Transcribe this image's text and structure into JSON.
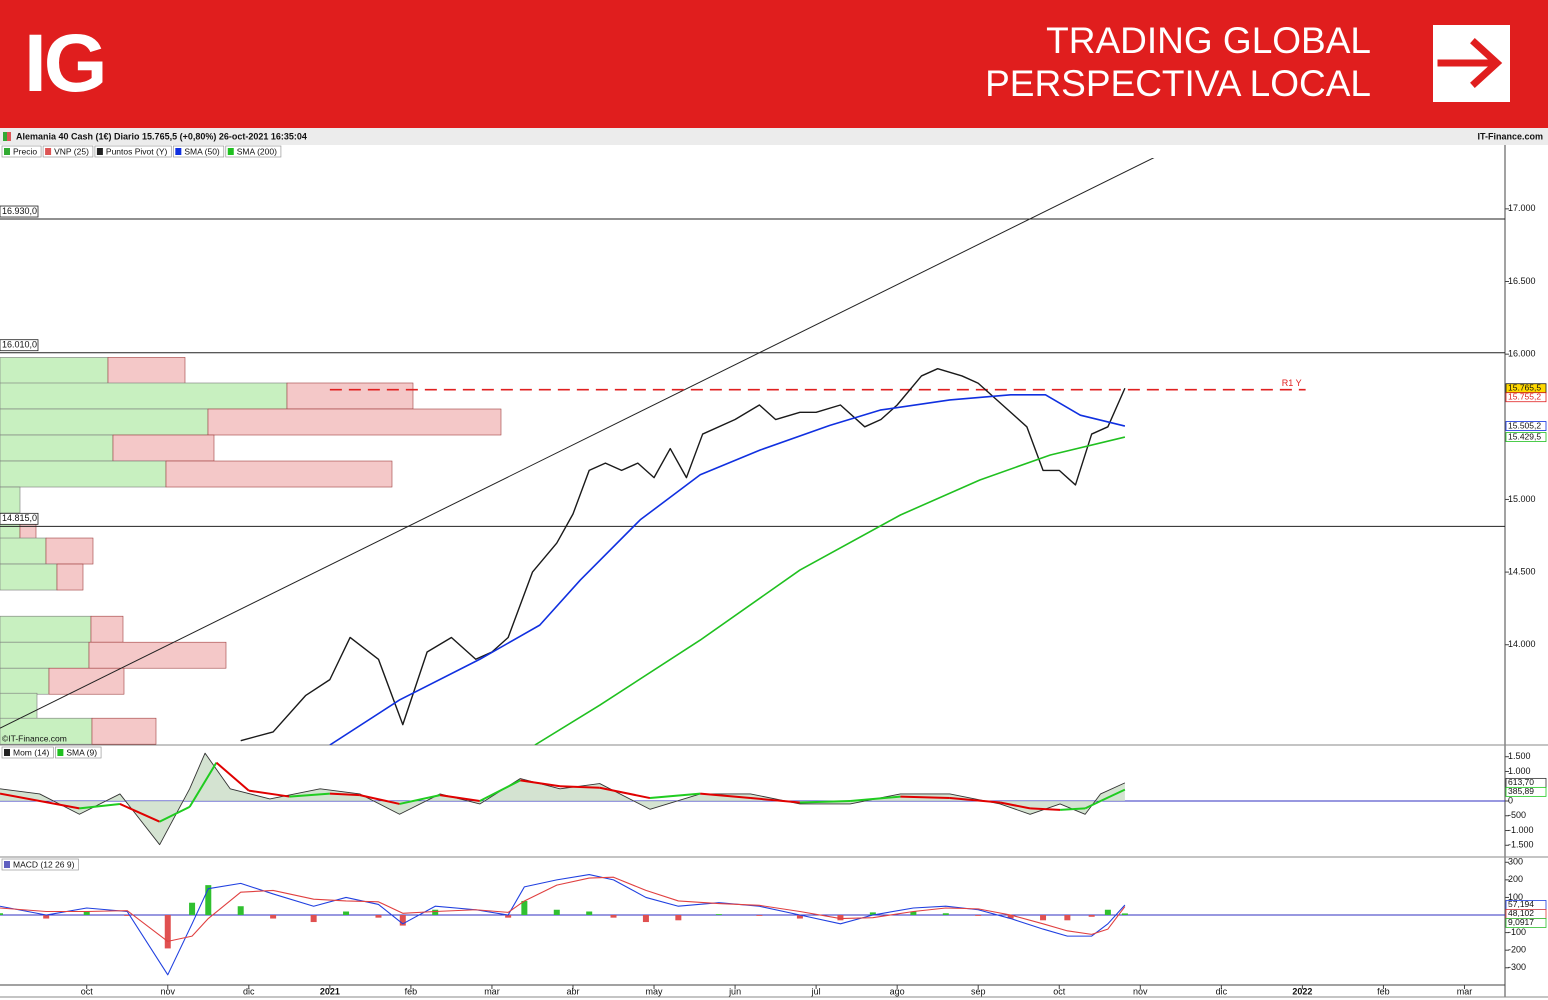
{
  "header": {
    "logo": "IG",
    "tagline": [
      "TRADING GLOBAL",
      "PERSPECTIVA LOCAL"
    ]
  },
  "chart_data": [
    {
      "type": "line",
      "title": "Alemania 40 Cash (1€) Diario 15.765,5 (+0,80%) 26-oct-2021 16:35:04",
      "source": "IT-Finance.com",
      "watermark": "©IT-Finance.com",
      "legend": [
        {
          "name": "Precio",
          "color": "#33aa33"
        },
        {
          "name": "VNP (25)",
          "color": "#dd5555"
        },
        {
          "name": "Puntos Pivot (Y)",
          "color": "#222222"
        },
        {
          "name": "SMA (50)",
          "color": "#1030e0"
        },
        {
          "name": "SMA (200)",
          "color": "#20c020"
        }
      ],
      "xlim": [
        -1.07,
        17.5
      ],
      "xticks": [
        {
          "value": 0,
          "label": "oct"
        },
        {
          "value": 1,
          "label": "nov"
        },
        {
          "value": 2,
          "label": "dic"
        },
        {
          "value": 3,
          "label": "2021"
        },
        {
          "value": 4,
          "label": "feb"
        },
        {
          "value": 5,
          "label": "mar"
        },
        {
          "value": 6,
          "label": "abr"
        },
        {
          "value": 7,
          "label": "may"
        },
        {
          "value": 8,
          "label": "jun"
        },
        {
          "value": 9,
          "label": "jul"
        },
        {
          "value": 10,
          "label": "ago"
        },
        {
          "value": 11,
          "label": "sep"
        },
        {
          "value": 12,
          "label": "oct"
        },
        {
          "value": 13,
          "label": "nov"
        },
        {
          "value": 14,
          "label": "dic"
        },
        {
          "value": 15,
          "label": "2022"
        },
        {
          "value": 16,
          "label": "feb"
        },
        {
          "value": 17,
          "label": "mar"
        }
      ],
      "ylim": [
        13310,
        17350
      ],
      "yticks": [
        {
          "value": 17000,
          "label": "17.000"
        },
        {
          "value": 16500,
          "label": "16.500"
        },
        {
          "value": 16000,
          "label": "16.000"
        },
        {
          "value": 15000,
          "label": "15.000"
        },
        {
          "value": 14500,
          "label": "14.500"
        },
        {
          "value": 14000,
          "label": "14.000"
        }
      ],
      "levels": [
        {
          "value": 16930,
          "label": "16.930,0"
        },
        {
          "value": 16010,
          "label": "16.010,0"
        },
        {
          "value": 14815,
          "label": "14.815,0"
        }
      ],
      "pivot": {
        "name": "R1 Y",
        "value": 15755.2,
        "label": "15.755,2",
        "color": "#e02020",
        "x": [
          3.0,
          15.04
        ]
      },
      "trendline": {
        "x": [
          -1.07,
          13.49
        ],
        "y": [
          13426,
          17441
        ],
        "color": "#222222"
      },
      "volume_profile": {
        "xlim": [
          0,
          1505
        ],
        "prices": [
          15888,
          15712,
          15533,
          15354,
          15175,
          14996,
          14775,
          14645,
          14466,
          14107,
          13928,
          13749,
          13577,
          13405
        ],
        "buy": [
          108,
          287,
          208,
          113,
          166,
          20,
          20,
          46,
          57,
          91,
          89,
          49,
          37,
          92
        ],
        "sell": [
          77,
          126,
          293,
          101,
          226,
          0,
          16,
          47,
          26,
          32,
          137,
          75,
          0,
          64
        ],
        "buy_color": "#c8f0c0",
        "sell_color": "#f4c8c8"
      },
      "series": [
        {
          "name": "Precio",
          "color": "#1a1a1a",
          "width": 1.4,
          "label_fill": "#ffd800",
          "last_label": "15.765,5",
          "x": [
            1.9,
            2.3,
            2.7,
            3.0,
            3.25,
            3.6,
            3.9,
            4.2,
            4.5,
            4.8,
            5.0,
            5.2,
            5.5,
            5.8,
            6.0,
            6.2,
            6.4,
            6.6,
            6.8,
            7.0,
            7.2,
            7.4,
            7.6,
            8.0,
            8.3,
            8.5,
            8.8,
            9.0,
            9.3,
            9.6,
            9.8,
            10.0,
            10.3,
            10.5,
            10.8,
            11.0,
            11.3,
            11.6,
            11.8,
            12.0,
            12.2,
            12.4,
            12.6,
            12.81
          ],
          "values": [
            13340,
            13400,
            13650,
            13760,
            14050,
            13900,
            13450,
            13950,
            14050,
            13900,
            13950,
            14050,
            14500,
            14700,
            14900,
            15200,
            15250,
            15200,
            15250,
            15150,
            15350,
            15150,
            15450,
            15550,
            15650,
            15550,
            15600,
            15600,
            15650,
            15500,
            15550,
            15650,
            15850,
            15900,
            15850,
            15800,
            15650,
            15500,
            15200,
            15200,
            15100,
            15450,
            15500,
            15765.5
          ]
        },
        {
          "name": "SMA (50)",
          "color": "#1030e0",
          "width": 1.6,
          "last_label": "15.505,2",
          "x": [
            3.0,
            3.86,
            4.85,
            5.59,
            6.09,
            6.83,
            7.57,
            8.31,
            9.17,
            9.79,
            10.65,
            11.4,
            11.83,
            12.26,
            12.81
          ],
          "values": [
            13310,
            13620,
            13900,
            14135,
            14445,
            14860,
            15170,
            15340,
            15510,
            15615,
            15685,
            15720,
            15720,
            15580,
            15505.2
          ]
        },
        {
          "name": "SMA (200)",
          "color": "#20c020",
          "width": 1.6,
          "last_label": "15.429,5",
          "x": [
            5.53,
            6.33,
            7.57,
            8.8,
            10.04,
            11.02,
            11.89,
            12.81
          ],
          "values": [
            13310,
            13584,
            14032,
            14514,
            14893,
            15134,
            15306,
            15429.5
          ]
        }
      ]
    },
    {
      "type": "line",
      "legend": [
        {
          "name": "Mom (14)",
          "color": "#222222"
        },
        {
          "name": "SMA (9)",
          "color": "#20c020"
        }
      ],
      "xlim": [
        -1.07,
        17.5
      ],
      "ylim": [
        -1897,
        1897
      ],
      "yticks": [
        {
          "value": 1500,
          "label": "1.500"
        },
        {
          "value": 1000,
          "label": "1.000"
        },
        0,
        -500,
        {
          "value": -1000,
          "label": "-1.000"
        },
        {
          "value": -1500,
          "label": "-1.500"
        }
      ],
      "reflines": [
        0
      ],
      "refline_color": "#3030c0",
      "series": [
        {
          "name": "Mom (14)",
          "color": "#333333",
          "width": 0.9,
          "fill": "#c9dcc6",
          "last_label": "613,70",
          "x": [
            -1.07,
            -0.58,
            -0.09,
            0.41,
            0.9,
            1.27,
            1.46,
            1.77,
            2.26,
            2.88,
            3.37,
            3.86,
            4.36,
            4.85,
            5.35,
            5.84,
            6.33,
            6.95,
            7.57,
            8.19,
            8.8,
            9.42,
            10.04,
            10.65,
            11.27,
            11.64,
            12.01,
            12.32,
            12.51,
            12.81
          ],
          "values": [
            414,
            240,
            -450,
            240,
            -1480,
            414,
            1620,
            414,
            70,
            414,
            240,
            -450,
            240,
            -100,
            760,
            414,
            590,
            -280,
            240,
            240,
            -100,
            -100,
            240,
            240,
            -100,
            -450,
            -100,
            -450,
            240,
            613.7
          ]
        },
        {
          "name": "SMA (9)",
          "color": "#20cc20",
          "color_down": "#e00000",
          "width": 2,
          "last_label": "385,89",
          "x": [
            -1.07,
            -0.09,
            0.41,
            0.9,
            1.27,
            1.6,
            2.0,
            2.5,
            3.0,
            3.37,
            3.86,
            4.36,
            4.85,
            5.35,
            5.84,
            6.33,
            6.95,
            7.57,
            8.19,
            8.8,
            9.42,
            10.04,
            10.65,
            11.27,
            11.64,
            12.01,
            12.32,
            12.51,
            12.81
          ],
          "values": [
            250,
            -250,
            -100,
            -700,
            -200,
            1300,
            350,
            150,
            250,
            200,
            -100,
            200,
            0,
            700,
            500,
            450,
            100,
            250,
            100,
            -50,
            0,
            150,
            100,
            -50,
            -250,
            -300,
            -250,
            0,
            385.89
          ]
        }
      ]
    },
    {
      "type": "combo",
      "legend": [
        {
          "name": "MACD (12 26 9)",
          "color": "#6060c0"
        }
      ],
      "xlim": [
        -1.07,
        17.5
      ],
      "ylim": [
        -398,
        330
      ],
      "yticks": [
        300,
        200,
        100,
        -100,
        -200,
        -300
      ],
      "reflines": [
        0
      ],
      "refline_color": "#3030c0",
      "series": [
        {
          "name": "Histograma",
          "style": "bar",
          "color": "#30c030",
          "color_down": "#e05050",
          "last_label": "9,0917",
          "x": [
            -1.07,
            -0.5,
            0,
            0.5,
            1.0,
            1.3,
            1.5,
            1.9,
            2.3,
            2.8,
            3.2,
            3.6,
            3.9,
            4.3,
            4.8,
            5.2,
            5.4,
            5.8,
            6.2,
            6.5,
            6.9,
            7.3,
            7.8,
            8.3,
            8.8,
            9.3,
            9.7,
            10.2,
            10.6,
            11.0,
            11.4,
            11.8,
            12.1,
            12.4,
            12.6,
            12.81
          ],
          "values": [
            10,
            -20,
            20,
            -5,
            -190,
            70,
            170,
            50,
            -20,
            -40,
            20,
            -15,
            -60,
            30,
            0,
            -15,
            80,
            30,
            20,
            -15,
            -40,
            -30,
            5,
            -5,
            -20,
            -30,
            15,
            20,
            10,
            -5,
            -20,
            -30,
            -30,
            -10,
            30,
            9.0917
          ]
        },
        {
          "name": "MACD",
          "color": "#2040e0",
          "width": 1.1,
          "last_label": "57,194",
          "x": [
            -1.07,
            -0.5,
            0,
            0.5,
            1.0,
            1.3,
            1.5,
            1.9,
            2.3,
            2.8,
            3.2,
            3.6,
            3.9,
            4.3,
            4.8,
            5.2,
            5.4,
            5.8,
            6.2,
            6.5,
            6.9,
            7.3,
            7.8,
            8.3,
            8.8,
            9.3,
            9.7,
            10.2,
            10.6,
            11.0,
            11.4,
            11.8,
            12.1,
            12.4,
            12.6,
            12.81
          ],
          "values": [
            50,
            0,
            40,
            20,
            -340,
            -50,
            150,
            180,
            120,
            50,
            100,
            60,
            -50,
            50,
            30,
            0,
            160,
            200,
            230,
            200,
            100,
            50,
            70,
            50,
            0,
            -50,
            0,
            40,
            50,
            30,
            -20,
            -80,
            -120,
            -120,
            -50,
            57.194
          ]
        },
        {
          "name": "Señal",
          "color": "#e04040",
          "width": 1.1,
          "last_label": "48,102",
          "x": [
            -1.07,
            -0.5,
            0,
            0.5,
            1.0,
            1.3,
            1.5,
            1.9,
            2.3,
            2.8,
            3.2,
            3.6,
            3.9,
            4.3,
            4.8,
            5.2,
            5.4,
            5.8,
            6.2,
            6.5,
            6.9,
            7.3,
            7.8,
            8.3,
            8.8,
            9.3,
            9.7,
            10.2,
            10.6,
            11.0,
            11.4,
            11.8,
            12.1,
            12.4,
            12.6,
            12.81
          ],
          "values": [
            40,
            20,
            20,
            25,
            -150,
            -120,
            -20,
            130,
            140,
            90,
            80,
            75,
            10,
            20,
            30,
            15,
            80,
            170,
            210,
            215,
            140,
            80,
            65,
            55,
            20,
            -20,
            -15,
            20,
            40,
            35,
            0,
            -50,
            -90,
            -110,
            -80,
            48.102
          ]
        }
      ]
    }
  ]
}
